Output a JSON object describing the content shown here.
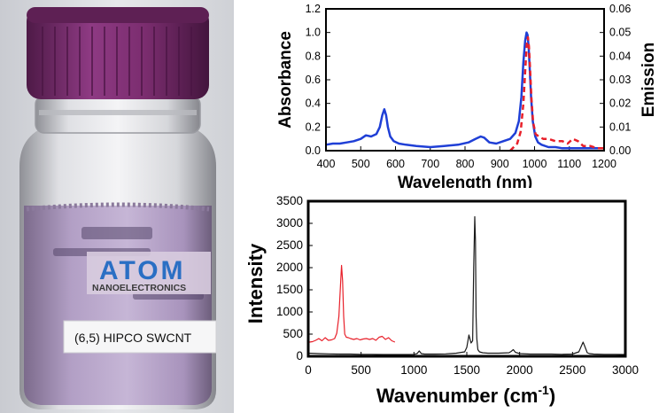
{
  "photo": {
    "label_text": "(6,5) HIPCO SWCNT",
    "logo_brand": "ATOM",
    "logo_subtitle": "NANOELECTRONICS",
    "colors": {
      "cap": "#7b2d6f",
      "liquid": "#b7a0c8",
      "background": "#dcdde1"
    }
  },
  "chart_data": [
    {
      "type": "line",
      "title": "",
      "xlabel": "Wavelength (nm)",
      "ylabel": "Absorbance",
      "y2label": "Emission",
      "xlim": [
        400,
        1200
      ],
      "ylim": [
        0,
        1.2
      ],
      "y2lim": [
        0,
        0.06
      ],
      "x_ticks": [
        "400",
        "500",
        "600",
        "700",
        "800",
        "900",
        "1000",
        "1100",
        "1200"
      ],
      "y_ticks": [
        "0.0",
        "0.2",
        "0.4",
        "0.6",
        "0.8",
        "1.0",
        "1.2"
      ],
      "y2_ticks": [
        "0.00",
        "0.01",
        "0.02",
        "0.03",
        "0.04",
        "0.05",
        "0.06"
      ],
      "series": [
        {
          "color": "#1f3fd6",
          "style": "solid",
          "axis": "left",
          "x": [
            400,
            420,
            440,
            460,
            480,
            500,
            515,
            530,
            545,
            555,
            562,
            568,
            573,
            578,
            585,
            595,
            610,
            630,
            660,
            700,
            740,
            780,
            810,
            830,
            845,
            855,
            870,
            890,
            910,
            930,
            945,
            955,
            962,
            968,
            973,
            977,
            980,
            983,
            986,
            990,
            995,
            1002,
            1010,
            1020,
            1040,
            1060,
            1080,
            1100,
            1120,
            1140,
            1160,
            1180,
            1200
          ],
          "y": [
            0.05,
            0.06,
            0.06,
            0.07,
            0.08,
            0.1,
            0.13,
            0.12,
            0.14,
            0.2,
            0.3,
            0.35,
            0.3,
            0.2,
            0.12,
            0.08,
            0.06,
            0.05,
            0.04,
            0.03,
            0.04,
            0.05,
            0.07,
            0.1,
            0.12,
            0.11,
            0.07,
            0.06,
            0.08,
            0.1,
            0.15,
            0.25,
            0.45,
            0.75,
            0.93,
            1.0,
            0.98,
            0.88,
            0.7,
            0.45,
            0.25,
            0.12,
            0.07,
            0.05,
            0.03,
            0.03,
            0.02,
            0.02,
            0.02,
            0.02,
            0.02,
            0.02,
            0.02
          ]
        },
        {
          "color": "#e8202a",
          "style": "dashed",
          "axis": "right",
          "x": [
            930,
            950,
            960,
            968,
            974,
            978,
            981,
            984,
            987,
            991,
            996,
            1003,
            1012,
            1025,
            1040,
            1060,
            1080,
            1095,
            1110,
            1125,
            1140,
            1160,
            1180,
            1200
          ],
          "y": [
            0.0,
            0.003,
            0.008,
            0.02,
            0.036,
            0.046,
            0.048,
            0.044,
            0.035,
            0.022,
            0.012,
            0.007,
            0.006,
            0.005,
            0.005,
            0.004,
            0.004,
            0.003,
            0.005,
            0.004,
            0.002,
            0.002,
            0.001,
            0.001
          ]
        }
      ]
    },
    {
      "type": "line",
      "title": "",
      "xlabel": "Wavenumber (cm",
      "xlabel_sup": "-1",
      "xlabel_end": ")",
      "ylabel": "Intensity",
      "xlim": [
        0,
        3000
      ],
      "ylim": [
        0,
        3500
      ],
      "x_ticks": [
        "0",
        "500",
        "1000",
        "1500",
        "2000",
        "2500",
        "3000"
      ],
      "y_ticks": [
        "0",
        "500",
        "1000",
        "1500",
        "2000",
        "2500",
        "3000",
        "3500"
      ],
      "series": [
        {
          "color": "#1a1a1a",
          "style": "solid",
          "x": [
            0,
            100,
            200,
            300,
            400,
            500,
            600,
            700,
            800,
            900,
            1000,
            1030,
            1050,
            1070,
            1100,
            1200,
            1300,
            1400,
            1480,
            1500,
            1520,
            1540,
            1555,
            1565,
            1575,
            1582,
            1588,
            1595,
            1605,
            1620,
            1650,
            1700,
            1800,
            1900,
            1920,
            1940,
            1960,
            2000,
            2100,
            2200,
            2300,
            2400,
            2500,
            2560,
            2600,
            2620,
            2640,
            2660,
            2700,
            2800,
            2900,
            3000
          ],
          "y": [
            70,
            60,
            55,
            50,
            50,
            45,
            45,
            40,
            40,
            40,
            45,
            60,
            120,
            60,
            50,
            50,
            55,
            70,
            100,
            200,
            480,
            300,
            350,
            2000,
            3150,
            2600,
            900,
            400,
            150,
            100,
            80,
            70,
            70,
            80,
            110,
            150,
            90,
            60,
            50,
            50,
            50,
            45,
            50,
            100,
            320,
            200,
            80,
            60,
            50,
            45,
            45,
            40
          ]
        },
        {
          "color": "#e8202a",
          "style": "solid",
          "x": [
            10,
            40,
            70,
            100,
            130,
            160,
            190,
            220,
            250,
            270,
            290,
            305,
            315,
            325,
            335,
            345,
            360,
            380,
            400,
            430,
            460,
            490,
            520,
            550,
            580,
            610,
            640,
            670,
            700,
            730,
            760,
            790,
            820
          ],
          "y": [
            320,
            330,
            360,
            400,
            350,
            420,
            360,
            370,
            400,
            520,
            900,
            1600,
            2050,
            1700,
            900,
            500,
            430,
            420,
            400,
            380,
            400,
            370,
            390,
            400,
            380,
            400,
            360,
            430,
            450,
            380,
            420,
            350,
            320
          ]
        }
      ]
    }
  ]
}
